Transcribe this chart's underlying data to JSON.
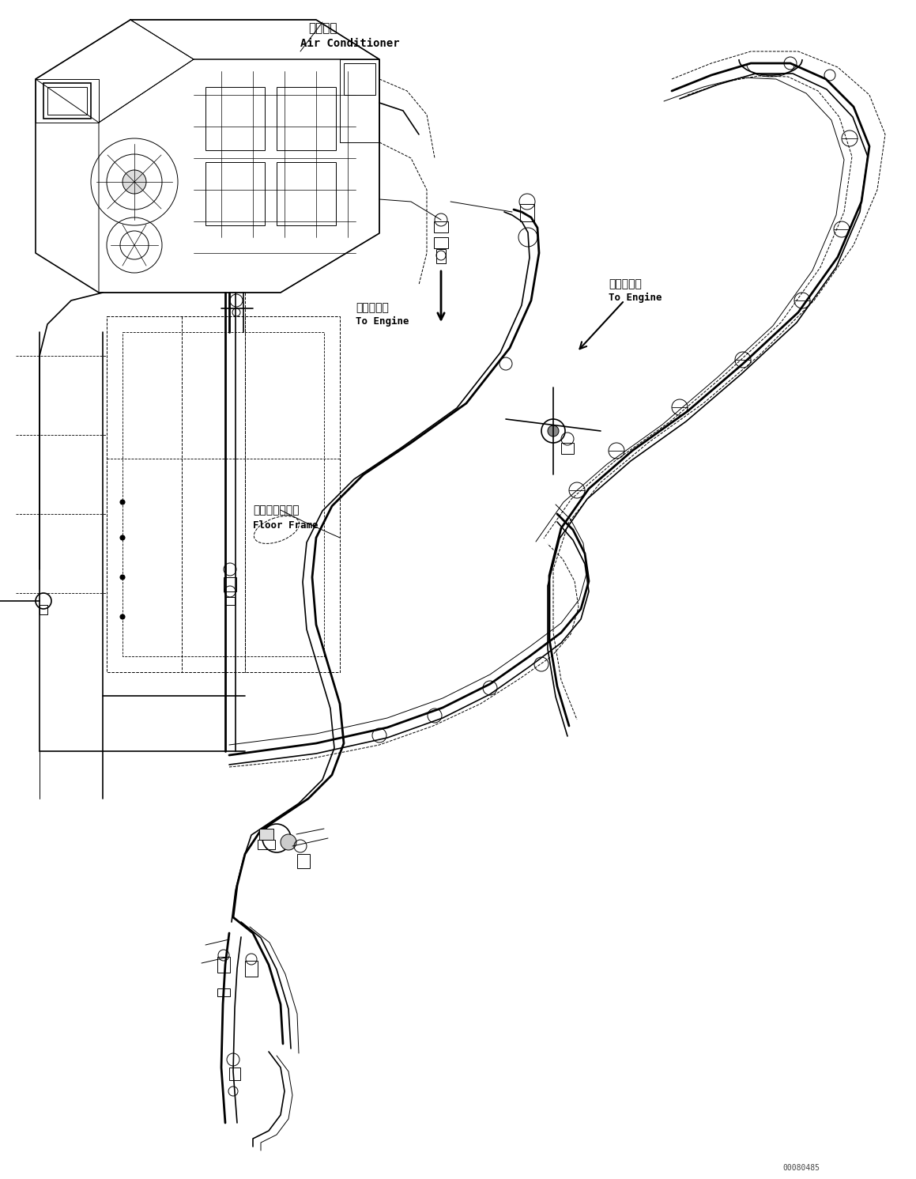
{
  "fig_width": 11.59,
  "fig_height": 14.91,
  "dpi": 100,
  "bg_color": "#ffffff",
  "line_color": "#000000",
  "label_ac_jp": "エアコン",
  "label_ac_en": "Air Conditioner",
  "label_engine1_jp": "エンジンへ",
  "label_engine1_en": "To Engine",
  "label_engine2_jp": "エンジンへ",
  "label_engine2_en": "To Engine",
  "label_floor_jp": "フロアフレーム",
  "label_floor_en": "Floor Frame",
  "watermark": "00080485"
}
